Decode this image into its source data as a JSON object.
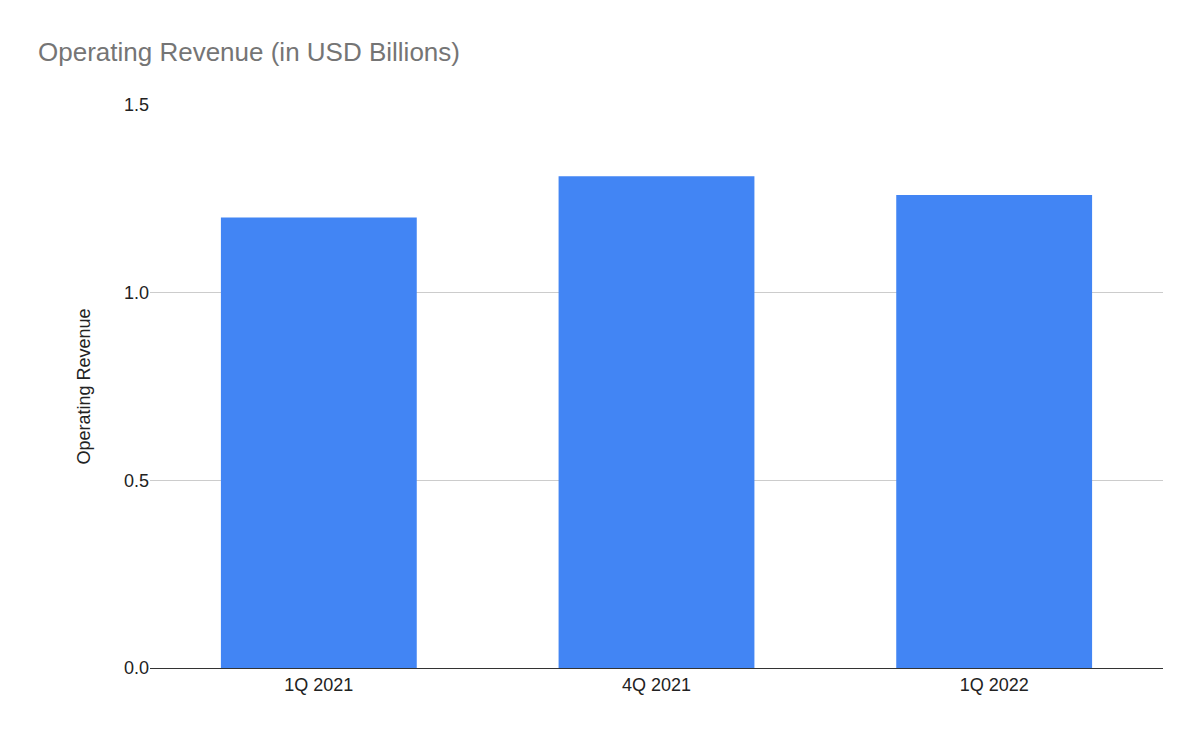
{
  "chart_data": {
    "type": "bar",
    "title": "Operating Revenue (in USD Billions)",
    "y_label": "Operating Revenue",
    "categories": [
      "1Q 2021",
      "4Q 2021",
      "1Q 2022"
    ],
    "values": [
      1.2,
      1.31,
      1.26
    ],
    "color": "#4285f4",
    "ylim": [
      0,
      1.5
    ],
    "yticks": [
      {
        "value": 0,
        "label": "0.0"
      },
      0.5,
      {
        "value": 1,
        "label": "1.0"
      },
      1.5
    ],
    "grid": true
  }
}
